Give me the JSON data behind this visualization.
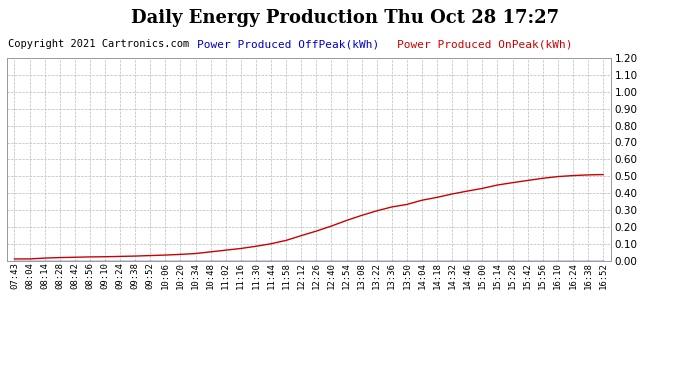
{
  "title": "Daily Energy Production Thu Oct 28 17:27",
  "copyright": "Copyright 2021 Cartronics.com",
  "legend_offpeak": "Power Produced OffPeak(kWh)",
  "legend_onpeak": "Power Produced OnPeak(kWh)",
  "offpeak_color": "#0000cc",
  "onpeak_color": "#cc0000",
  "background_color": "#ffffff",
  "plot_bg_color": "#ffffff",
  "grid_color": "#bbbbbb",
  "ylim": [
    0.0,
    1.2
  ],
  "yticks": [
    0.0,
    0.1,
    0.2,
    0.3,
    0.4,
    0.5,
    0.6,
    0.7,
    0.8,
    0.9,
    1.0,
    1.1,
    1.2
  ],
  "x_labels": [
    "07:43",
    "08:04",
    "08:14",
    "08:28",
    "08:42",
    "08:56",
    "09:10",
    "09:24",
    "09:38",
    "09:52",
    "10:06",
    "10:20",
    "10:34",
    "10:48",
    "11:02",
    "11:16",
    "11:30",
    "11:44",
    "11:58",
    "12:12",
    "12:26",
    "12:40",
    "12:54",
    "13:08",
    "13:22",
    "13:36",
    "13:50",
    "14:04",
    "14:18",
    "14:32",
    "14:46",
    "15:00",
    "15:14",
    "15:28",
    "15:42",
    "15:56",
    "16:10",
    "16:24",
    "16:38",
    "16:52"
  ],
  "onpeak_values": [
    0.01,
    0.01,
    0.015,
    0.018,
    0.02,
    0.022,
    0.023,
    0.025,
    0.027,
    0.03,
    0.033,
    0.037,
    0.042,
    0.052,
    0.062,
    0.072,
    0.085,
    0.1,
    0.12,
    0.148,
    0.175,
    0.205,
    0.238,
    0.268,
    0.295,
    0.318,
    0.333,
    0.358,
    0.375,
    0.395,
    0.412,
    0.428,
    0.448,
    0.462,
    0.475,
    0.488,
    0.498,
    0.504,
    0.508,
    0.51
  ],
  "offpeak_values": [
    0.0,
    0.0,
    0.0,
    0.0,
    0.0,
    0.0,
    0.0,
    0.0,
    0.0,
    0.0,
    0.0,
    0.0,
    0.0,
    0.0,
    0.0,
    0.0,
    0.0,
    0.0,
    0.0,
    0.0,
    0.0,
    0.0,
    0.0,
    0.0,
    0.0,
    0.0,
    0.0,
    0.0,
    0.0,
    0.0,
    0.0,
    0.0,
    0.0,
    0.0,
    0.0,
    0.0,
    0.0,
    0.0,
    0.0,
    0.0
  ],
  "title_fontsize": 13,
  "copyright_fontsize": 7.5,
  "legend_fontsize": 8,
  "tick_fontsize": 6.5,
  "ytick_fontsize": 7.5
}
